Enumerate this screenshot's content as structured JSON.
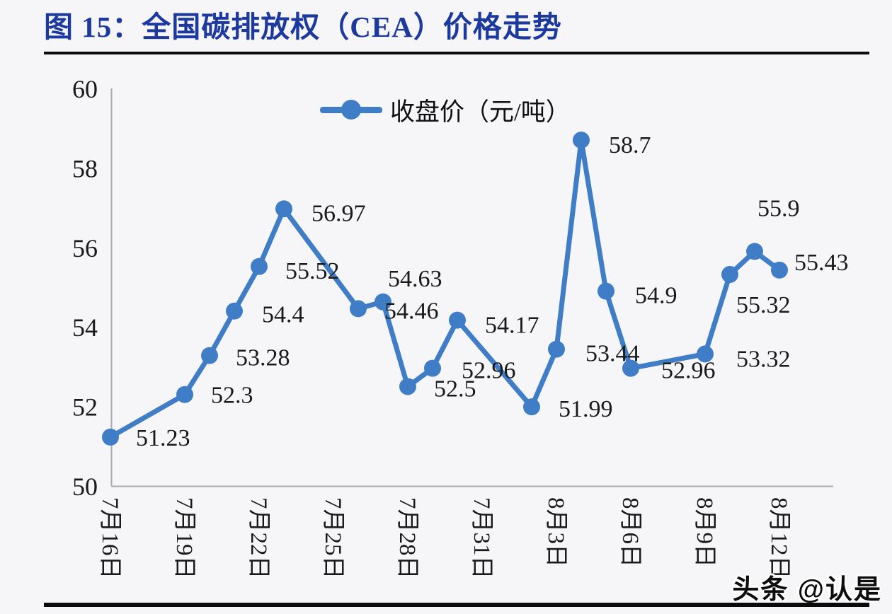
{
  "page": {
    "background": "#F6F5F7"
  },
  "figure": {
    "title": "图 15：全国碳排放权（CEA）价格走势",
    "title_color": "#1B399E"
  },
  "watermark": {
    "text": "头条 @认是"
  },
  "chart_data": {
    "type": "line",
    "title": "全国碳排放权（CEA）价格走势",
    "legend": {
      "label": "收盘价（元/吨）",
      "position": "top-center"
    },
    "grid": false,
    "ylim": [
      50,
      60
    ],
    "y_ticks": [
      60,
      58,
      56,
      54,
      52,
      50
    ],
    "x_ticks": [
      {
        "label": "7月16日",
        "day": 0
      },
      {
        "label": "7月19日",
        "day": 3
      },
      {
        "label": "7月22日",
        "day": 6
      },
      {
        "label": "7月25日",
        "day": 9
      },
      {
        "label": "7月28日",
        "day": 12
      },
      {
        "label": "7月31日",
        "day": 15
      },
      {
        "label": "8月3日",
        "day": 18
      },
      {
        "label": "8月6日",
        "day": 21
      },
      {
        "label": "8月9日",
        "day": 24
      },
      {
        "label": "8月12日",
        "day": 27
      }
    ],
    "axis_color": "#ABABAE",
    "label_color": "#1A1A1A",
    "series": [
      {
        "name": "收盘价（元/吨）",
        "color": "#3F7DC6",
        "points": [
          {
            "date": "7月16日",
            "day": 0,
            "value": 51.23,
            "label": "51.23",
            "label_offset": [
              36,
              0
            ]
          },
          {
            "date": "7月19日",
            "day": 3,
            "value": 52.3,
            "label": "52.3",
            "label_offset": [
              37,
              0
            ]
          },
          {
            "date": "7月20日",
            "day": 4,
            "value": 53.28,
            "label": "53.28",
            "label_offset": [
              37,
              2
            ]
          },
          {
            "date": "7月21日",
            "day": 5,
            "value": 54.4,
            "label": "54.4",
            "label_offset": [
              39,
              4
            ]
          },
          {
            "date": "7月22日",
            "day": 6,
            "value": 55.52,
            "label": "55.52",
            "label_offset": [
              37,
              5
            ]
          },
          {
            "date": "7月23日",
            "day": 7,
            "value": 56.97,
            "label": "56.97",
            "label_offset": [
              39,
              5
            ]
          },
          {
            "date": "7月26日",
            "day": 10,
            "value": 54.46,
            "label": "54.46",
            "label_offset": [
              37,
              2
            ]
          },
          {
            "date": "7月27日",
            "day": 11,
            "value": 54.63,
            "label": "54.63",
            "label_offset": [
              7,
              -34
            ]
          },
          {
            "date": "7月28日",
            "day": 12,
            "value": 52.5,
            "label": "52.5",
            "label_offset": [
              37,
              2
            ]
          },
          {
            "date": "7月29日",
            "day": 13,
            "value": 52.96,
            "label": "52.96",
            "label_offset": [
              41,
              2
            ]
          },
          {
            "date": "7月30日",
            "day": 14,
            "value": 54.17,
            "label": "54.17",
            "label_offset": [
              39,
              6
            ]
          },
          {
            "date": "8月2日",
            "day": 17,
            "value": 51.99,
            "label": "51.99",
            "label_offset": [
              38,
              2
            ]
          },
          {
            "date": "8月3日",
            "day": 18,
            "value": 53.44,
            "label": "53.44",
            "label_offset": [
              41,
              5
            ]
          },
          {
            "date": "8月4日",
            "day": 19,
            "value": 58.7,
            "label": "58.7",
            "label_offset": [
              39,
              6
            ]
          },
          {
            "date": "8月5日",
            "day": 20,
            "value": 54.9,
            "label": "54.9",
            "label_offset": [
              41,
              5
            ]
          },
          {
            "date": "8月6日",
            "day": 21,
            "value": 52.96,
            "label": "52.96",
            "label_offset": [
              43,
              2
            ]
          },
          {
            "date": "8月9日",
            "day": 24,
            "value": 53.32,
            "label": "53.32",
            "label_offset": [
              44,
              6
            ]
          },
          {
            "date": "8月10日",
            "day": 25,
            "value": 55.32,
            "label": "55.32",
            "label_offset": [
              9,
              42
            ]
          },
          {
            "date": "8月11日",
            "day": 26,
            "value": 55.9,
            "label": "55.9",
            "label_offset": [
              4,
              -62
            ]
          },
          {
            "date": "8月12日",
            "day": 27,
            "value": 55.43,
            "label": "55.43",
            "label_offset": [
              21,
              -12
            ]
          }
        ]
      }
    ]
  }
}
